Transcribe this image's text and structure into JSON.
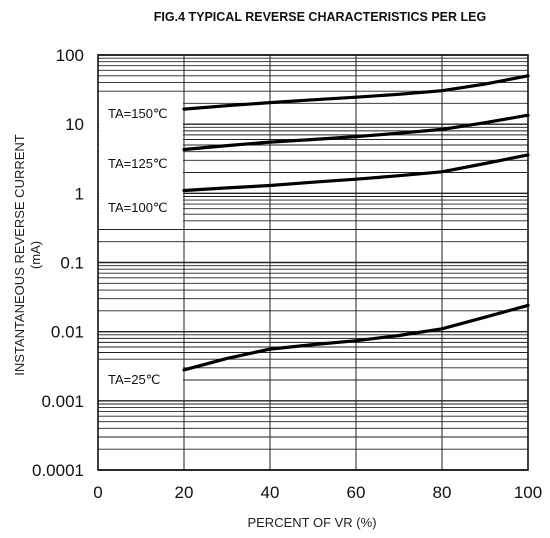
{
  "chart_data": {
    "type": "line",
    "title": "FIG.4 TYPICAL REVERSE CHARACTERISTICS PER LEG",
    "xlabel": "PERCENT OF VR (%)",
    "ylabel": "INSTANTANEOUS REVERSE CURRENT",
    "ylabel_unit": "(mA)",
    "xlim": [
      0,
      100
    ],
    "ylim": [
      0.0001,
      100
    ],
    "yscale": "log",
    "grid": true,
    "x_ticks": [
      "0",
      "20",
      "40",
      "60",
      "80",
      "100"
    ],
    "y_ticks": [
      "100",
      "10",
      "1",
      "0.1",
      "0.01",
      "0.001",
      "0.0001"
    ],
    "series": [
      {
        "name": "TA=150℃",
        "x": [
          20,
          30,
          40,
          50,
          60,
          70,
          80,
          90,
          100
        ],
        "values": [
          16.5,
          18.5,
          20.5,
          22.5,
          24.5,
          27,
          30.5,
          38,
          50
        ]
      },
      {
        "name": "TA=125℃",
        "x": [
          20,
          30,
          40,
          50,
          60,
          70,
          80,
          90,
          100
        ],
        "values": [
          4.3,
          4.9,
          5.5,
          6,
          6.6,
          7.4,
          8.4,
          10.5,
          13.5
        ]
      },
      {
        "name": "TA=100℃",
        "x": [
          20,
          30,
          40,
          50,
          60,
          70,
          80,
          90,
          100
        ],
        "values": [
          1.1,
          1.2,
          1.3,
          1.45,
          1.6,
          1.8,
          2.05,
          2.7,
          3.6
        ]
      },
      {
        "name": "TA=25℃",
        "x": [
          20,
          30,
          40,
          50,
          60,
          70,
          80,
          90,
          100
        ],
        "values": [
          0.0028,
          0.0041,
          0.0056,
          0.0065,
          0.0074,
          0.0088,
          0.011,
          0.0162,
          0.024
        ]
      }
    ]
  }
}
